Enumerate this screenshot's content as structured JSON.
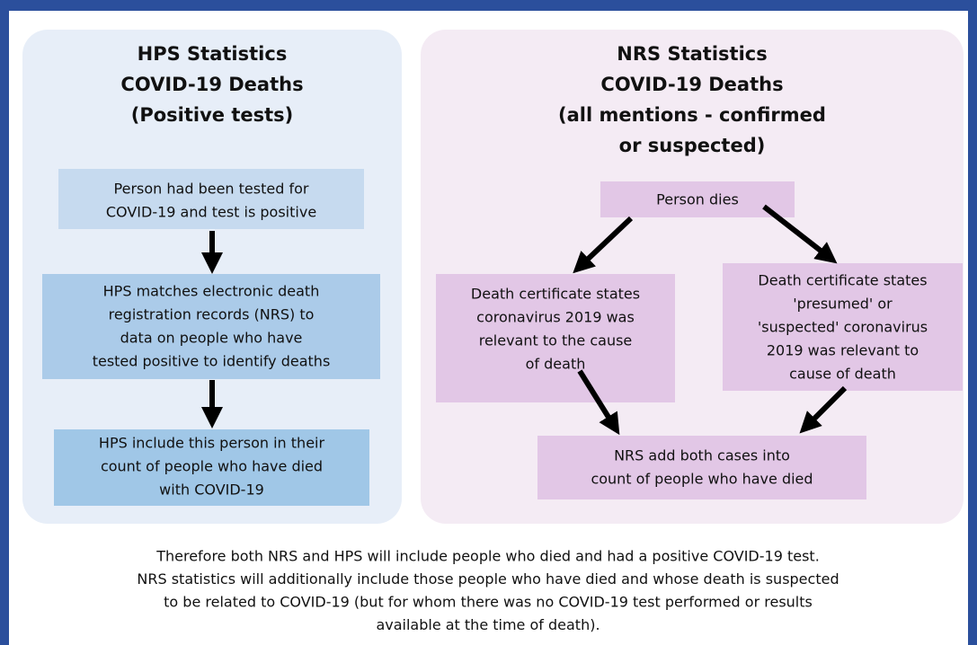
{
  "panels": [
    {
      "title": [
        "HPS Statistics",
        "COVID-19 Deaths",
        "(Positive tests)"
      ],
      "nodes": [
        {
          "lines": [
            "Person had been tested for",
            "COVID-19 and test is positive"
          ]
        },
        {
          "lines": [
            "HPS matches electronic death",
            "registration records (NRS) to",
            "data on people who have",
            "tested positive to identify deaths"
          ]
        },
        {
          "lines": [
            "HPS include this person in their",
            "count of people who have died",
            "with COVID-19"
          ]
        }
      ]
    },
    {
      "title": [
        "NRS Statistics",
        "COVID-19 Deaths",
        "(all mentions - confirmed",
        "or suspected)"
      ],
      "nodes": [
        {
          "lines": [
            "Person dies"
          ]
        },
        {
          "lines": [
            "Death certificate states",
            "coronavirus 2019 was",
            "relevant to the cause",
            "of death"
          ]
        },
        {
          "lines": [
            "Death certificate states",
            "'presumed' or",
            "'suspected' coronavirus",
            "2019 was relevant to",
            "cause of death"
          ]
        },
        {
          "lines": [
            "NRS add both cases into",
            "count of people who have died"
          ]
        }
      ]
    }
  ],
  "footer": [
    "Therefore both NRS and HPS will include people who died and had a positive COVID-19 test.",
    "NRS statistics will additionally include those people who have died and whose death is suspected",
    "to be related to COVID-19 (but for whom there was no COVID-19 test performed or results",
    "available at the time of death)."
  ]
}
